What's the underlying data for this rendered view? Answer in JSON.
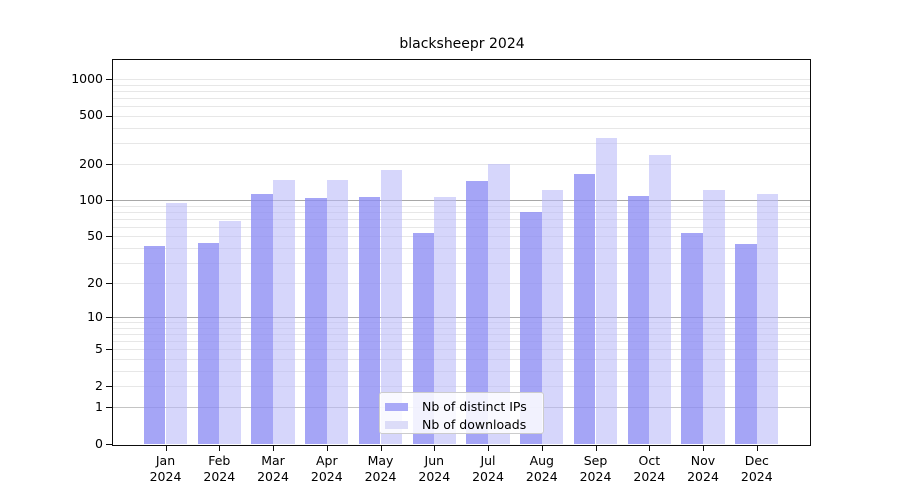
{
  "chart_data": {
    "type": "bar",
    "title": "blacksheepr 2024",
    "categories": [
      "Jan",
      "Feb",
      "Mar",
      "Apr",
      "May",
      "Jun",
      "Jul",
      "Aug",
      "Sep",
      "Oct",
      "Nov",
      "Dec"
    ],
    "x_year_label": "2024",
    "series": [
      {
        "name": "Nb of distinct IPs",
        "values": [
          42,
          44,
          114,
          104,
          106,
          54,
          144,
          80,
          167,
          108,
          54,
          43
        ],
        "fill": "rgba(140,140,244,0.78)",
        "legend_color": "#a9a9f7"
      },
      {
        "name": "Nb of downloads",
        "values": [
          95,
          68,
          148,
          149,
          180,
          106,
          199,
          121,
          330,
          236,
          122,
          113
        ],
        "fill": "rgba(185,185,248,0.58)",
        "legend_color": "#dcdcf8"
      }
    ],
    "yscale": "log1p",
    "yticks": [
      0,
      1,
      2,
      5,
      10,
      20,
      50,
      100,
      200,
      500,
      1000
    ],
    "ylim": [
      0,
      1460
    ],
    "grid": {
      "strong": [
        10,
        100
      ],
      "medium": [
        1
      ],
      "light": [
        2,
        3,
        4,
        5,
        6,
        7,
        8,
        9,
        20,
        30,
        40,
        50,
        60,
        70,
        80,
        90,
        200,
        300,
        400,
        500,
        600,
        700,
        800,
        900,
        1000
      ]
    },
    "legend_position": "lower center",
    "background_color": "#ffffff"
  }
}
